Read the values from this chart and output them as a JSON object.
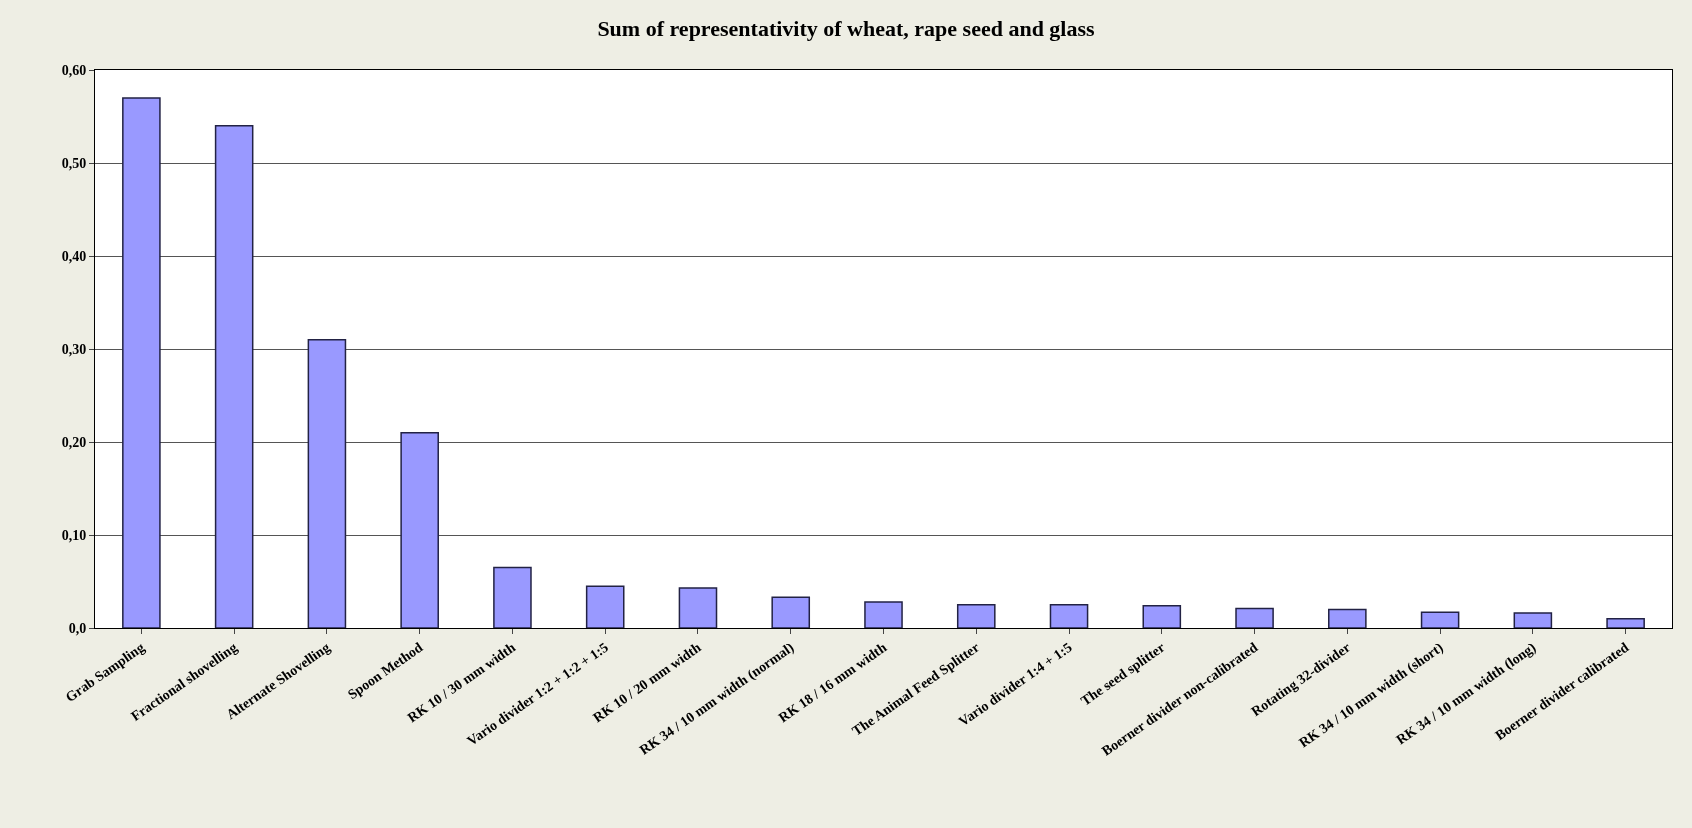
{
  "chart_data": {
    "type": "bar",
    "title": "Sum of representativity of wheat, rape seed and glass",
    "categories": [
      "Grab Sampling",
      "Fractional shovelling",
      "Alternate Shovelling",
      "Spoon Method",
      "RK 10 / 30 mm width",
      "Vario divider 1:2 + 1:2 + 1:5",
      "RK 10 / 20 mm width",
      "RK 34 / 10 mm width (normal)",
      "RK 18 / 16 mm width",
      "The Animal Feed Splitter",
      "Vario divider 1:4 + 1:5",
      "The seed splitter",
      "Boerner divider non-calibrated",
      "Rotating 32-divider",
      "RK 34 / 10 mm width (short)",
      "RK 34 / 10 mm width (long)",
      "Boerner divider calibrated"
    ],
    "values": [
      0.57,
      0.54,
      0.31,
      0.21,
      0.065,
      0.045,
      0.043,
      0.033,
      0.028,
      0.025,
      0.025,
      0.024,
      0.021,
      0.02,
      0.017,
      0.016,
      0.01
    ],
    "color": "#9999ff",
    "ylim": [
      0,
      0.6
    ],
    "yticks": [
      {
        "value": 0,
        "label": "0,0"
      },
      {
        "value": 0.1,
        "label": "0,10"
      },
      {
        "value": 0.2,
        "label": "0,20"
      },
      {
        "value": 0.3,
        "label": "0,30"
      },
      {
        "value": 0.4,
        "label": "0,40"
      },
      {
        "value": 0.5,
        "label": "0,50"
      },
      {
        "value": 0.6,
        "label": "0,60"
      }
    ],
    "grid": "y"
  }
}
